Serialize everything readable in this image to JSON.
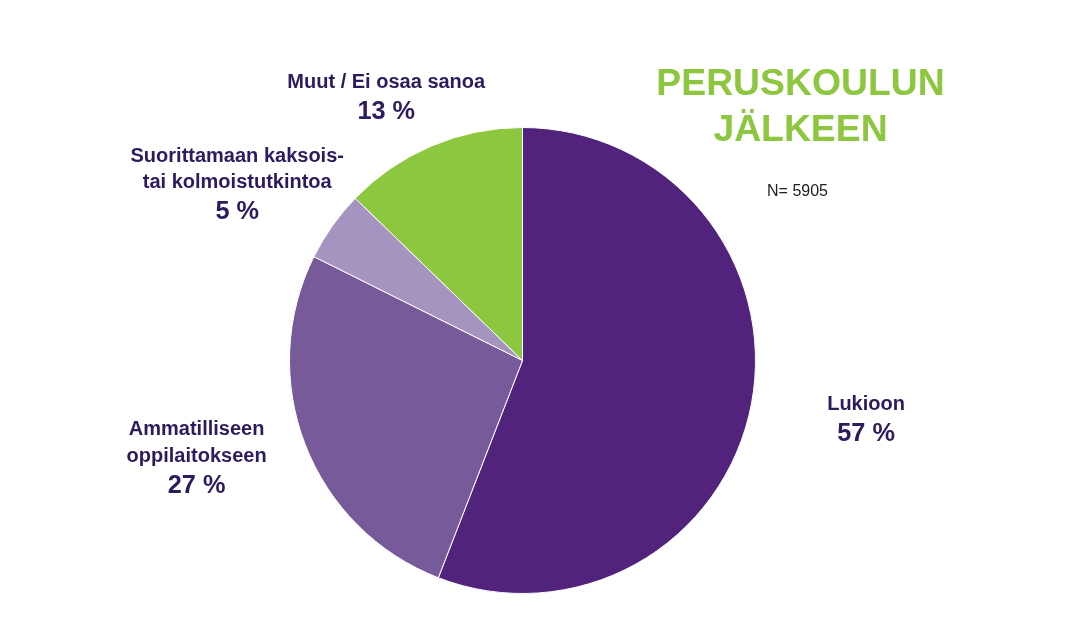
{
  "chart_data": {
    "type": "pie",
    "title": "PERUSKOULUN\nJÄLKEEN",
    "annotations": [
      "N= 5905"
    ],
    "categories": [
      "Lukioon",
      "Ammatilliseen\noppilaitokseen",
      "Suorittamaan kaksois-\ntai kolmoistutkintoa",
      "Muut / Ei osaa sanoa"
    ],
    "values": [
      57,
      27,
      5,
      13
    ],
    "colors": [
      "#52237d",
      "#765a9a",
      "#a594c0",
      "#8dc63f"
    ],
    "value_labels": [
      "57 %",
      "27 %",
      "5 %",
      "13 %"
    ]
  }
}
